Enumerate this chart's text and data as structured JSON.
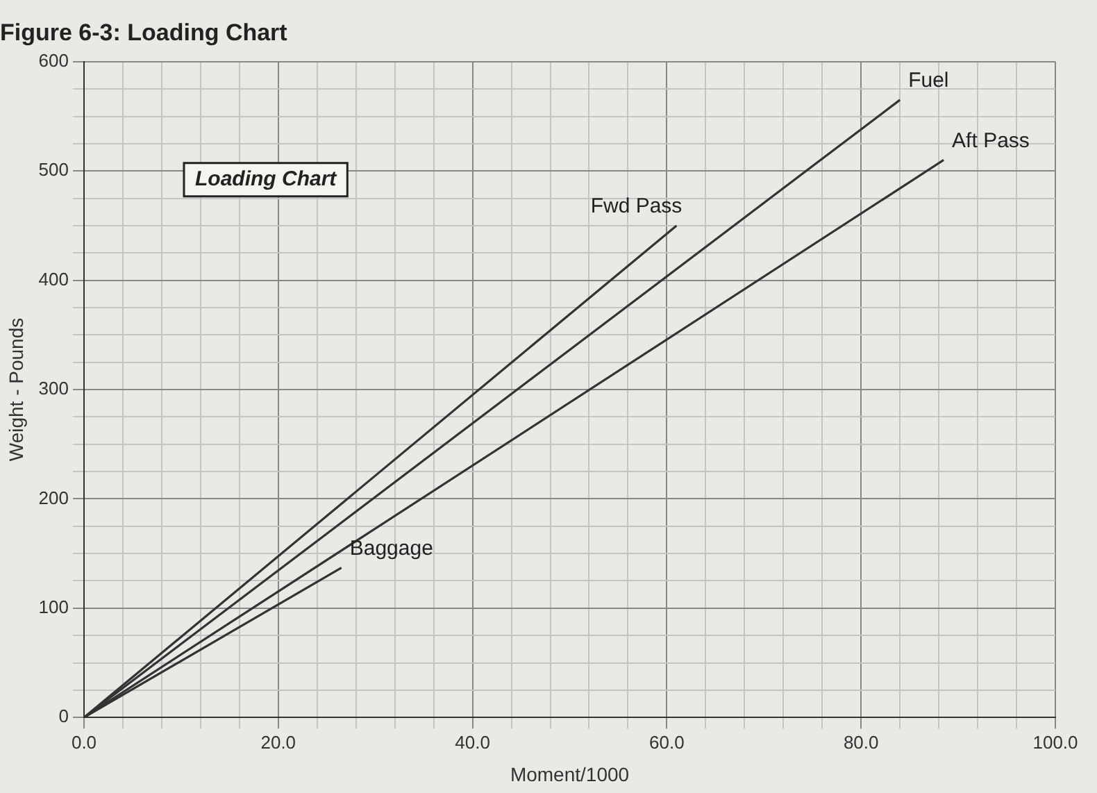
{
  "chart_data": {
    "type": "line",
    "title": "Figure 6-3: Loading Chart",
    "xlabel": "Moment/1000",
    "ylabel": "Weight - Pounds",
    "xlim": [
      0,
      100
    ],
    "ylim": [
      0,
      600
    ],
    "xticks": [
      {
        "value": 0,
        "label": "0.0"
      },
      {
        "value": 4,
        "label": null
      },
      {
        "value": 8,
        "label": null
      },
      {
        "value": 12,
        "label": null
      },
      {
        "value": 16,
        "label": null
      },
      {
        "value": 20,
        "label": "20.0"
      },
      {
        "value": 24,
        "label": null
      },
      {
        "value": 28,
        "label": null
      },
      {
        "value": 32,
        "label": null
      },
      {
        "value": 36,
        "label": null
      },
      {
        "value": 40,
        "label": "40.0"
      },
      {
        "value": 44,
        "label": null
      },
      {
        "value": 48,
        "label": null
      },
      {
        "value": 52,
        "label": null
      },
      {
        "value": 56,
        "label": null
      },
      {
        "value": 60,
        "label": "60.0"
      },
      {
        "value": 64,
        "label": null
      },
      {
        "value": 68,
        "label": null
      },
      {
        "value": 72,
        "label": null
      },
      {
        "value": 76,
        "label": null
      },
      {
        "value": 80,
        "label": "80.0"
      },
      {
        "value": 84,
        "label": null
      },
      {
        "value": 88,
        "label": null
      },
      {
        "value": 92,
        "label": null
      },
      {
        "value": 96,
        "label": null
      },
      {
        "value": 100,
        "label": "100.0"
      }
    ],
    "yticks": [
      0,
      {
        "value": 25,
        "label": null
      },
      {
        "value": 50,
        "label": null
      },
      {
        "value": 75,
        "label": null
      },
      100,
      {
        "value": 125,
        "label": null
      },
      {
        "value": 150,
        "label": null
      },
      {
        "value": 175,
        "label": null
      },
      200,
      {
        "value": 225,
        "label": null
      },
      {
        "value": 250,
        "label": null
      },
      {
        "value": 275,
        "label": null
      },
      300,
      {
        "value": 325,
        "label": null
      },
      {
        "value": 350,
        "label": null
      },
      {
        "value": 375,
        "label": null
      },
      400,
      {
        "value": 425,
        "label": null
      },
      {
        "value": 450,
        "label": null
      },
      {
        "value": 475,
        "label": null
      },
      500,
      {
        "value": 525,
        "label": null
      },
      {
        "value": 550,
        "label": null
      },
      {
        "value": 575,
        "label": null
      },
      600
    ],
    "grid": true,
    "legend": false,
    "marker": "none",
    "line_style": "solid",
    "annotations": [
      "Loading Chart"
    ],
    "series": [
      {
        "name": "Fwd Pass",
        "color": "#333333",
        "x": [
          0,
          61
        ],
        "values": [
          0,
          450
        ]
      },
      {
        "name": "Fuel",
        "color": "#333333",
        "x": [
          0,
          84
        ],
        "values": [
          0,
          565
        ]
      },
      {
        "name": "Aft Pass",
        "color": "#333333",
        "x": [
          0,
          88.5
        ],
        "values": [
          0,
          510
        ]
      },
      {
        "name": "Baggage",
        "color": "#333333",
        "x": [
          0,
          26.5
        ],
        "values": [
          0,
          137
        ]
      }
    ]
  }
}
